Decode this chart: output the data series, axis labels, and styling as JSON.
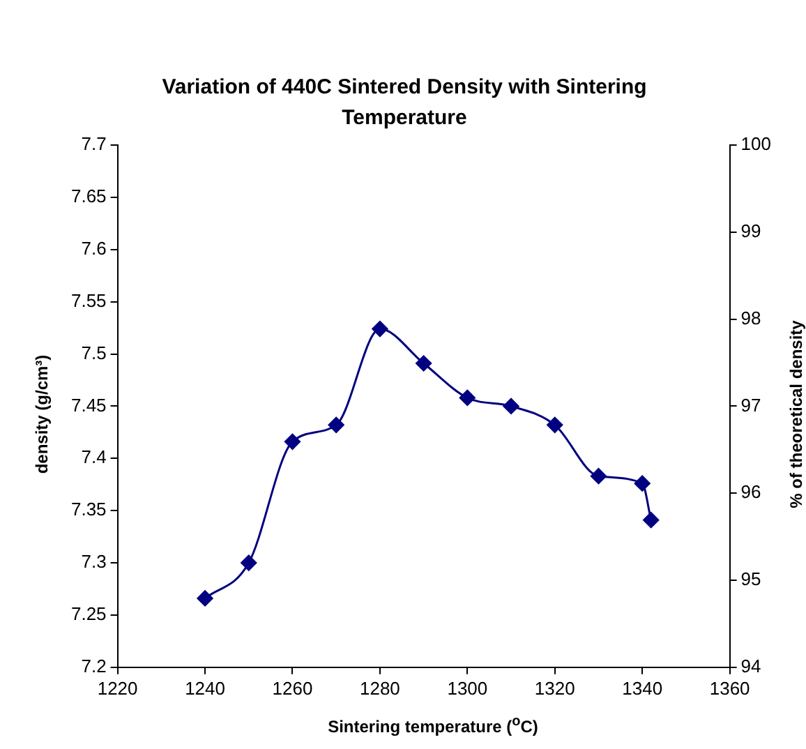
{
  "chart_data": {
    "type": "line",
    "title": "Variation of 440C Sintered Density with Sintering Temperature",
    "xlabel": "Sintering temperature ($^{o}$C)",
    "ylabel": "density (g/cm³)",
    "y2label": "% of theoretical density",
    "x": [
      1240,
      1250,
      1260,
      1270,
      1280,
      1290,
      1300,
      1310,
      1320,
      1330,
      1340,
      1342
    ],
    "series": [
      {
        "color": "#000080",
        "values": [
          7.266,
          7.3,
          7.416,
          7.432,
          7.524,
          7.491,
          7.458,
          7.45,
          7.432,
          7.383,
          7.376,
          7.341
        ]
      }
    ],
    "xlim": [
      1220,
      1360
    ],
    "xticks": [
      1220,
      1240,
      1260,
      1280,
      1300,
      1320,
      1340,
      1360
    ],
    "ylim": [
      7.2,
      7.7
    ],
    "yticks": [
      7.2,
      7.25,
      7.3,
      7.35,
      7.4,
      7.45,
      7.5,
      7.55,
      7.6,
      7.65,
      7.7
    ],
    "y2lim": [
      94,
      100
    ],
    "y2ticks": [
      94,
      95,
      96,
      97,
      98,
      99,
      100
    ],
    "grid": false,
    "legend": false,
    "marker": "diamond",
    "line_style": "solid"
  }
}
